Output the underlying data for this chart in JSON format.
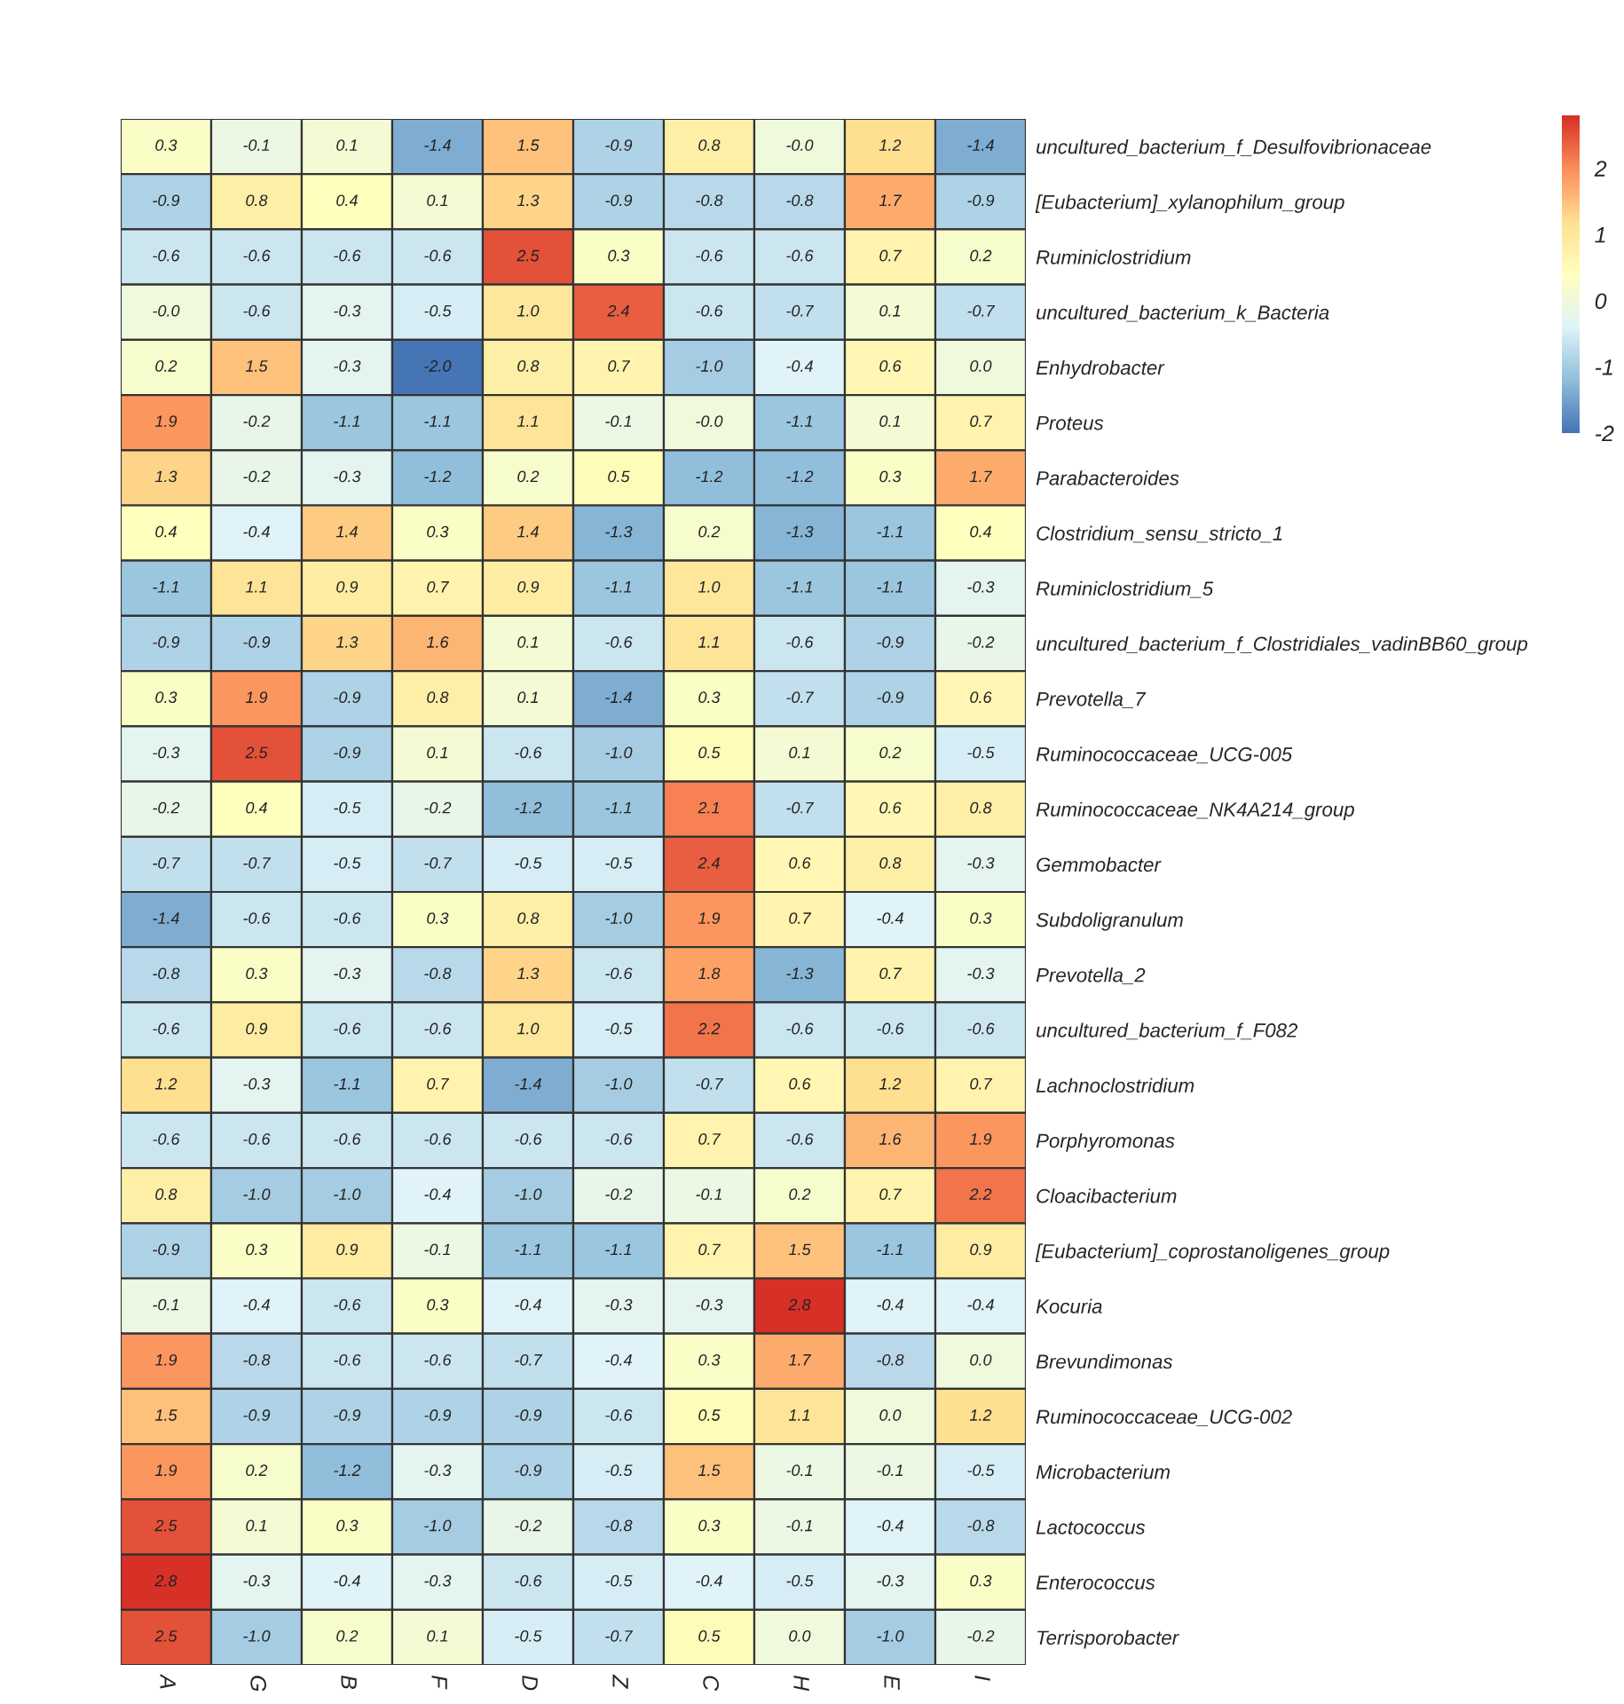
{
  "chart_data": {
    "type": "heatmap",
    "categories": [
      "A",
      "G",
      "B",
      "F",
      "D",
      "Z",
      "C",
      "H",
      "E",
      "I"
    ],
    "y_categories": [
      "uncultured_bacterium_f_Desulfovibrionaceae",
      "[Eubacterium]_xylanophilum_group",
      "Ruminiclostridium",
      "uncultured_bacterium_k_Bacteria",
      "Enhydrobacter",
      "Proteus",
      "Parabacteroides",
      "Clostridium_sensu_stricto_1",
      "Ruminiclostridium_5",
      "uncultured_bacterium_f_Clostridiales_vadinBB60_group",
      "Prevotella_7",
      "Ruminococcaceae_UCG-005",
      "Ruminococcaceae_NK4A214_group",
      "Gemmobacter",
      "Subdoligranulum",
      "Prevotella_2",
      "uncultured_bacterium_f_F082",
      "Lachnoclostridium",
      "Porphyromonas",
      "Cloacibacterium",
      "[Eubacterium]_coprostanoligenes_group",
      "Kocuria",
      "Brevundimonas",
      "Ruminococcaceae_UCG-002",
      "Microbacterium",
      "Lactococcus",
      "Enterococcus",
      "Terrisporobacter"
    ],
    "cells": [
      [
        0.3,
        -0.1,
        0.1,
        -1.4,
        1.5,
        -0.9,
        0.8,
        -0.0,
        1.2,
        -1.4
      ],
      [
        -0.9,
        0.8,
        0.4,
        0.1,
        1.3,
        -0.9,
        -0.8,
        -0.8,
        1.7,
        -0.9
      ],
      [
        -0.6,
        -0.6,
        -0.6,
        -0.6,
        2.5,
        0.3,
        -0.6,
        -0.6,
        0.7,
        0.2
      ],
      [
        -0.0,
        -0.6,
        -0.3,
        -0.5,
        1.0,
        2.4,
        -0.6,
        -0.7,
        0.1,
        -0.7
      ],
      [
        0.2,
        1.5,
        -0.3,
        -2.0,
        0.8,
        0.7,
        -1.0,
        -0.4,
        0.6,
        0.0
      ],
      [
        1.9,
        -0.2,
        -1.1,
        -1.1,
        1.1,
        -0.1,
        -0.0,
        -1.1,
        0.1,
        0.7
      ],
      [
        1.3,
        -0.2,
        -0.3,
        -1.2,
        0.2,
        0.5,
        -1.2,
        -1.2,
        0.3,
        1.7
      ],
      [
        0.4,
        -0.4,
        1.4,
        0.3,
        1.4,
        -1.3,
        0.2,
        -1.3,
        -1.1,
        0.4
      ],
      [
        -1.1,
        1.1,
        0.9,
        0.7,
        0.9,
        -1.1,
        1.0,
        -1.1,
        -1.1,
        -0.3
      ],
      [
        -0.9,
        -0.9,
        1.3,
        1.6,
        0.1,
        -0.6,
        1.1,
        -0.6,
        -0.9,
        -0.2
      ],
      [
        0.3,
        1.9,
        -0.9,
        0.8,
        0.1,
        -1.4,
        0.3,
        -0.7,
        -0.9,
        0.6
      ],
      [
        -0.3,
        2.5,
        -0.9,
        0.1,
        -0.6,
        -1.0,
        0.5,
        0.1,
        0.2,
        -0.5
      ],
      [
        -0.2,
        0.4,
        -0.5,
        -0.2,
        -1.2,
        -1.1,
        2.1,
        -0.7,
        0.6,
        0.8
      ],
      [
        -0.7,
        -0.7,
        -0.5,
        -0.7,
        -0.5,
        -0.5,
        2.4,
        0.6,
        0.8,
        -0.3
      ],
      [
        -1.4,
        -0.6,
        -0.6,
        0.3,
        0.8,
        -1.0,
        1.9,
        0.7,
        -0.4,
        0.3
      ],
      [
        -0.8,
        0.3,
        -0.3,
        -0.8,
        1.3,
        -0.6,
        1.8,
        -1.3,
        0.7,
        -0.3
      ],
      [
        -0.6,
        0.9,
        -0.6,
        -0.6,
        1.0,
        -0.5,
        2.2,
        -0.6,
        -0.6,
        -0.6
      ],
      [
        1.2,
        -0.3,
        -1.1,
        0.7,
        -1.4,
        -1.0,
        -0.7,
        0.6,
        1.2,
        0.7
      ],
      [
        -0.6,
        -0.6,
        -0.6,
        -0.6,
        -0.6,
        -0.6,
        0.7,
        -0.6,
        1.6,
        1.9
      ],
      [
        0.8,
        -1.0,
        -1.0,
        -0.4,
        -1.0,
        -0.2,
        -0.1,
        0.2,
        0.7,
        2.2
      ],
      [
        -0.9,
        0.3,
        0.9,
        -0.1,
        -1.1,
        -1.1,
        0.7,
        1.5,
        -1.1,
        0.9
      ],
      [
        -0.1,
        -0.4,
        -0.6,
        0.3,
        -0.4,
        -0.3,
        -0.3,
        2.8,
        -0.4,
        -0.4
      ],
      [
        1.9,
        -0.8,
        -0.6,
        -0.6,
        -0.7,
        -0.4,
        0.3,
        1.7,
        -0.8,
        0.0
      ],
      [
        1.5,
        -0.9,
        -0.9,
        -0.9,
        -0.9,
        -0.6,
        0.5,
        1.1,
        0.0,
        1.2
      ],
      [
        1.9,
        0.2,
        -1.2,
        -0.3,
        -0.9,
        -0.5,
        1.5,
        -0.1,
        -0.1,
        -0.5
      ],
      [
        2.5,
        0.1,
        0.3,
        -1.0,
        -0.2,
        -0.8,
        0.3,
        -0.1,
        -0.4,
        -0.8
      ],
      [
        2.8,
        -0.3,
        -0.4,
        -0.3,
        -0.6,
        -0.5,
        -0.4,
        -0.5,
        -0.3,
        0.3
      ],
      [
        2.5,
        -1.0,
        0.2,
        0.1,
        -0.5,
        -0.7,
        0.5,
        0.0,
        -1.0,
        -0.2
      ]
    ],
    "cell_labels": [
      [
        "0.3",
        "-0.1",
        "0.1",
        "-1.4",
        "1.5",
        "-0.9",
        "0.8",
        "-0.0",
        "1.2",
        "-1.4"
      ],
      [
        "-0.9",
        "0.8",
        "0.4",
        "0.1",
        "1.3",
        "-0.9",
        "-0.8",
        "-0.8",
        "1.7",
        "-0.9"
      ],
      [
        "-0.6",
        "-0.6",
        "-0.6",
        "-0.6",
        "2.5",
        "0.3",
        "-0.6",
        "-0.6",
        "0.7",
        "0.2"
      ],
      [
        "-0.0",
        "-0.6",
        "-0.3",
        "-0.5",
        "1.0",
        "2.4",
        "-0.6",
        "-0.7",
        "0.1",
        "-0.7"
      ],
      [
        "0.2",
        "1.5",
        "-0.3",
        "-2.0",
        "0.8",
        "0.7",
        "-1.0",
        "-0.4",
        "0.6",
        "0.0"
      ],
      [
        "1.9",
        "-0.2",
        "-1.1",
        "-1.1",
        "1.1",
        "-0.1",
        "-0.0",
        "-1.1",
        "0.1",
        "0.7"
      ],
      [
        "1.3",
        "-0.2",
        "-0.3",
        "-1.2",
        "0.2",
        "0.5",
        "-1.2",
        "-1.2",
        "0.3",
        "1.7"
      ],
      [
        "0.4",
        "-0.4",
        "1.4",
        "0.3",
        "1.4",
        "-1.3",
        "0.2",
        "-1.3",
        "-1.1",
        "0.4"
      ],
      [
        "-1.1",
        "1.1",
        "0.9",
        "0.7",
        "0.9",
        "-1.1",
        "1.0",
        "-1.1",
        "-1.1",
        "-0.3"
      ],
      [
        "-0.9",
        "-0.9",
        "1.3",
        "1.6",
        "0.1",
        "-0.6",
        "1.1",
        "-0.6",
        "-0.9",
        "-0.2"
      ],
      [
        "0.3",
        "1.9",
        "-0.9",
        "0.8",
        "0.1",
        "-1.4",
        "0.3",
        "-0.7",
        "-0.9",
        "0.6"
      ],
      [
        "-0.3",
        "2.5",
        "-0.9",
        "0.1",
        "-0.6",
        "-1.0",
        "0.5",
        "0.1",
        "0.2",
        "-0.5"
      ],
      [
        "-0.2",
        "0.4",
        "-0.5",
        "-0.2",
        "-1.2",
        "-1.1",
        "2.1",
        "-0.7",
        "0.6",
        "0.8"
      ],
      [
        "-0.7",
        "-0.7",
        "-0.5",
        "-0.7",
        "-0.5",
        "-0.5",
        "2.4",
        "0.6",
        "0.8",
        "-0.3"
      ],
      [
        "-1.4",
        "-0.6",
        "-0.6",
        "0.3",
        "0.8",
        "-1.0",
        "1.9",
        "0.7",
        "-0.4",
        "0.3"
      ],
      [
        "-0.8",
        "0.3",
        "-0.3",
        "-0.8",
        "1.3",
        "-0.6",
        "1.8",
        "-1.3",
        "0.7",
        "-0.3"
      ],
      [
        "-0.6",
        "0.9",
        "-0.6",
        "-0.6",
        "1.0",
        "-0.5",
        "2.2",
        "-0.6",
        "-0.6",
        "-0.6"
      ],
      [
        "1.2",
        "-0.3",
        "-1.1",
        "0.7",
        "-1.4",
        "-1.0",
        "-0.7",
        "0.6",
        "1.2",
        "0.7"
      ],
      [
        "-0.6",
        "-0.6",
        "-0.6",
        "-0.6",
        "-0.6",
        "-0.6",
        "0.7",
        "-0.6",
        "1.6",
        "1.9"
      ],
      [
        "0.8",
        "-1.0",
        "-1.0",
        "-0.4",
        "-1.0",
        "-0.2",
        "-0.1",
        "0.2",
        "0.7",
        "2.2"
      ],
      [
        "-0.9",
        "0.3",
        "0.9",
        "-0.1",
        "-1.1",
        "-1.1",
        "0.7",
        "1.5",
        "-1.1",
        "0.9"
      ],
      [
        "-0.1",
        "-0.4",
        "-0.6",
        "0.3",
        "-0.4",
        "-0.3",
        "-0.3",
        "2.8",
        "-0.4",
        "-0.4"
      ],
      [
        "1.9",
        "-0.8",
        "-0.6",
        "-0.6",
        "-0.7",
        "-0.4",
        "0.3",
        "1.7",
        "-0.8",
        "0.0"
      ],
      [
        "1.5",
        "-0.9",
        "-0.9",
        "-0.9",
        "-0.9",
        "-0.6",
        "0.5",
        "1.1",
        "0.0",
        "1.2"
      ],
      [
        "1.9",
        "0.2",
        "-1.2",
        "-0.3",
        "-0.9",
        "-0.5",
        "1.5",
        "-0.1",
        "-0.1",
        "-0.5"
      ],
      [
        "2.5",
        "0.1",
        "0.3",
        "-1.0",
        "-0.2",
        "-0.8",
        "0.3",
        "-0.1",
        "-0.4",
        "-0.8"
      ],
      [
        "2.8",
        "-0.3",
        "-0.4",
        "-0.3",
        "-0.6",
        "-0.5",
        "-0.4",
        "-0.5",
        "-0.3",
        "0.3"
      ],
      [
        "2.5",
        "-1.0",
        "0.2",
        "0.1",
        "-0.5",
        "-0.7",
        "0.5",
        "0.0",
        "-1.0",
        "-0.2"
      ]
    ],
    "colors": [
      "#4575b4",
      "#91bfdb",
      "#e0f3f8",
      "#ffffbf",
      "#fee090",
      "#fc8d59",
      "#d73027"
    ],
    "clim": [
      -2.0,
      2.8
    ],
    "cticks": [
      -2,
      -1,
      0,
      1,
      2
    ],
    "data_labels": true
  }
}
